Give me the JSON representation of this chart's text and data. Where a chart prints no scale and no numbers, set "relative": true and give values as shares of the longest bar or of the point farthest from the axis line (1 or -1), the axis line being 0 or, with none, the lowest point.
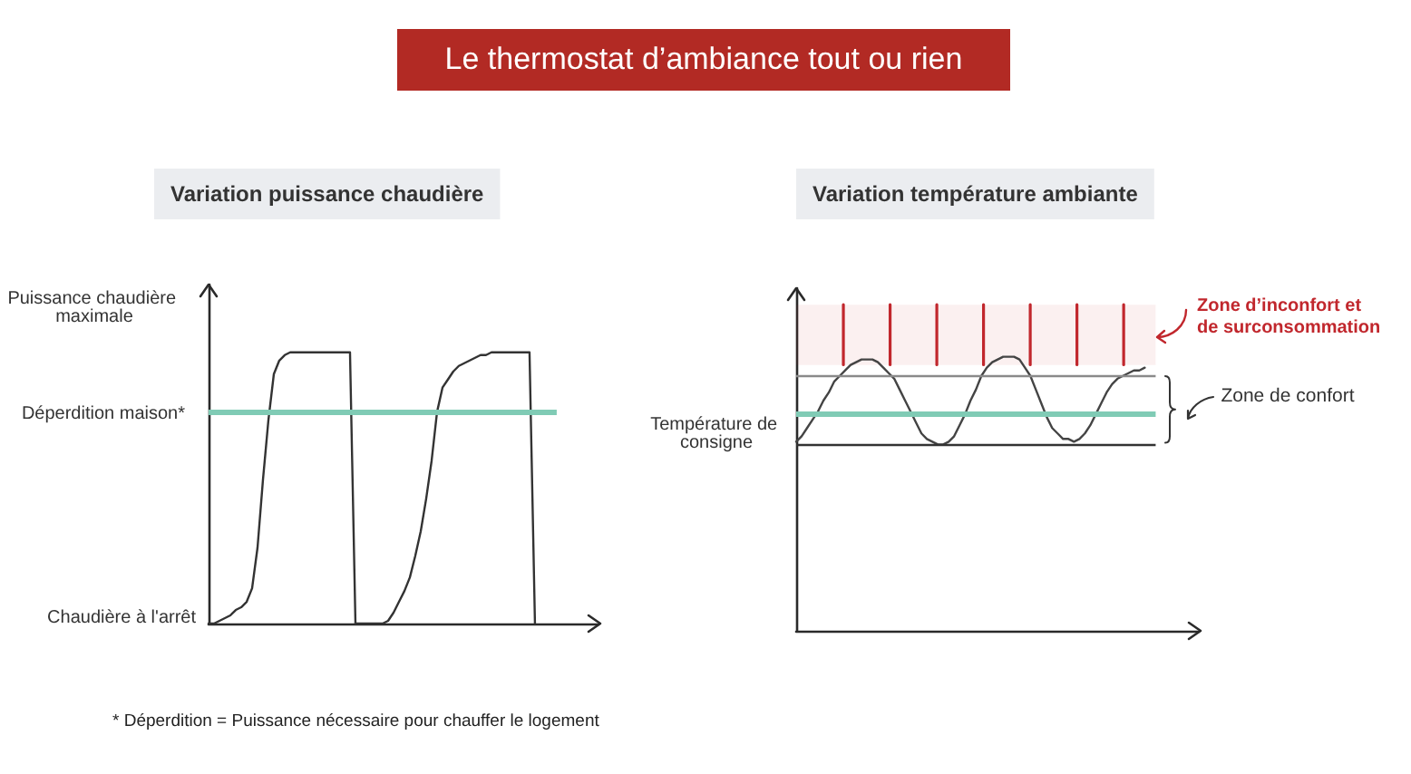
{
  "chart_data": [
    {
      "type": "line",
      "title": "Le thermostat d’ambiance tout ou rien",
      "subtitle": "Variation puissance chaudière",
      "ylabel": "Puissance chaudière maximale",
      "relative": true,
      "marker": "none",
      "categories": [
        null,
        null,
        null,
        null,
        null,
        null,
        null,
        null,
        null,
        null,
        null,
        null,
        null,
        null,
        null,
        null,
        null,
        null,
        null,
        null,
        null,
        null,
        null,
        null,
        null,
        null,
        null,
        null,
        null,
        null,
        null,
        null,
        null,
        null,
        null,
        null,
        null,
        null,
        null,
        null,
        null,
        null,
        null,
        null,
        null,
        null,
        null,
        null,
        null,
        null,
        null,
        null,
        null,
        null,
        null,
        null,
        null,
        null,
        null,
        null,
        null,
        null,
        null,
        null,
        null
      ],
      "series": [
        {
          "color": "#333333",
          "values": [
            0,
            0,
            0.01,
            0.02,
            0.03,
            0.05,
            0.06,
            0.08,
            0.13,
            0.28,
            0.53,
            0.75,
            0.92,
            0.97,
            0.99,
            1,
            1,
            1,
            1,
            1,
            1,
            1,
            1,
            1,
            1,
            1,
            1,
            0,
            0,
            0,
            0,
            0,
            0,
            0.01,
            0.04,
            0.08,
            0.12,
            0.17,
            0.25,
            0.34,
            0.46,
            0.6,
            0.78,
            0.87,
            0.9,
            0.93,
            0.95,
            0.96,
            0.97,
            0.98,
            0.99,
            0.99,
            1,
            1,
            1,
            1,
            1,
            1,
            1,
            1,
            0,
            null,
            null,
            null,
            null
          ]
        }
      ],
      "ref_lines": [
        {
          "axis": "y",
          "value": 0.78,
          "label": "Déperdition maison*",
          "color": "#80cbb5"
        }
      ],
      "annotations": [
        "Chaudière à l'arrêt",
        "* Déperdition = Puissance nécessaire pour chauffer le logement"
      ]
    },
    {
      "type": "line",
      "title": "Variation température ambiante",
      "relative": true,
      "marker": "none",
      "categories": [
        null,
        null,
        null,
        null,
        null,
        null,
        null,
        null,
        null,
        null,
        null,
        null,
        null,
        null,
        null,
        null,
        null,
        null,
        null,
        null,
        null,
        null,
        null,
        null,
        null,
        null,
        null,
        null,
        null,
        null,
        null,
        null,
        null,
        null,
        null,
        null,
        null,
        null,
        null,
        null,
        null,
        null,
        null,
        null,
        null,
        null,
        null,
        null,
        null,
        null,
        null,
        null,
        null,
        null,
        null,
        null,
        null,
        null,
        null,
        null,
        null,
        null,
        null,
        null,
        null,
        null,
        null
      ],
      "series": [
        {
          "color": "#444444",
          "values": [
            0.69,
            0.71,
            0.74,
            0.77,
            0.8,
            0.84,
            0.87,
            0.91,
            0.93,
            0.95,
            0.97,
            0.98,
            0.99,
            0.99,
            0.99,
            0.98,
            0.96,
            0.94,
            0.92,
            0.88,
            0.84,
            0.8,
            0.76,
            0.72,
            0.7,
            0.69,
            0.68,
            0.68,
            0.69,
            0.71,
            0.75,
            0.79,
            0.84,
            0.88,
            0.93,
            0.96,
            0.98,
            0.99,
            1,
            1,
            1,
            0.99,
            0.96,
            0.93,
            0.88,
            0.83,
            0.78,
            0.74,
            0.72,
            0.7,
            0.7,
            0.69,
            0.7,
            0.72,
            0.75,
            0.79,
            0.83,
            0.87,
            0.9,
            0.92,
            0.93,
            0.94,
            0.95,
            0.95,
            0.96,
            null,
            null
          ]
        }
      ],
      "ref_lines": [
        {
          "axis": "y",
          "value": 0.79,
          "label": "Température de consigne",
          "color": "#80cbb5"
        },
        {
          "axis": "y",
          "value": 0.93,
          "color": "#8a8a8a"
        },
        {
          "axis": "y",
          "value": 0.68,
          "color": "#333333"
        }
      ],
      "bands": [
        {
          "axis": "y",
          "from": 0.97,
          "to": 1.19,
          "label": "Zone d’inconfort et de surconsommation",
          "color": "#c1272d"
        }
      ],
      "annotations": [
        "Zone de confort"
      ]
    }
  ]
}
